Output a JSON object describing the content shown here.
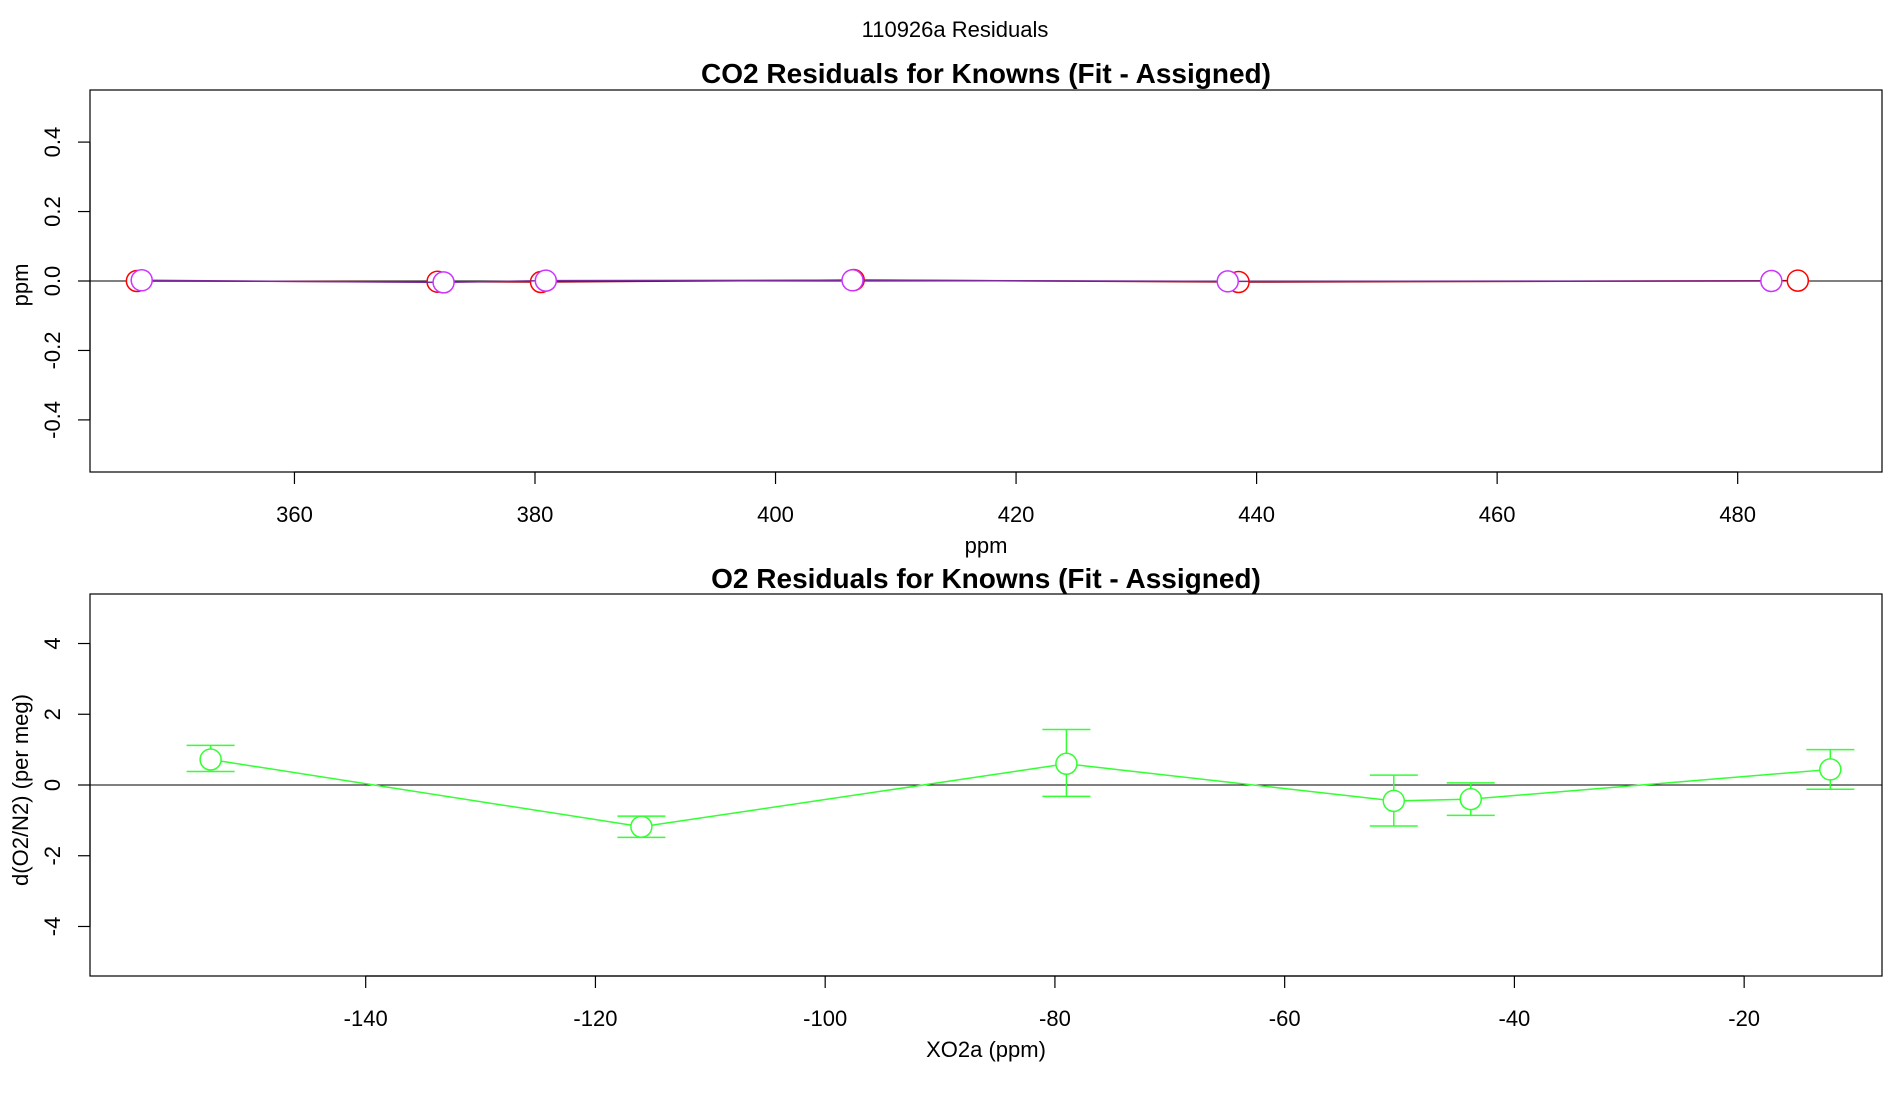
{
  "figure": {
    "suptitle": "110926a  Residuals"
  },
  "chart_data": [
    {
      "type": "line",
      "title": "CO2 Residuals for Knowns (Fit - Assigned)",
      "xlabel": "ppm",
      "ylabel": "ppm",
      "xlim": [
        343,
        492
      ],
      "ylim": [
        -0.55,
        0.55
      ],
      "xticks": [
        360,
        380,
        400,
        420,
        440,
        460,
        480
      ],
      "yticks": [
        -0.4,
        -0.2,
        0.0,
        0.2,
        0.4
      ],
      "ytick_labels": [
        "-0.4",
        "-0.2",
        "0.0",
        "0.2",
        "0.4"
      ],
      "zero_line": true,
      "series": [
        {
          "name": "series-red",
          "color": "#ff0000",
          "line_color": "#a00000",
          "x": [
            346.9,
            371.9,
            380.5,
            406.5,
            438.5,
            485.0
          ],
          "y": [
            0.0,
            -0.002,
            -0.003,
            0.003,
            -0.003,
            0.001
          ]
        },
        {
          "name": "series-magenta",
          "color": "#cc33ff",
          "line_color": "#7a2a9a",
          "x": [
            347.3,
            372.4,
            380.9,
            406.4,
            437.6,
            482.8
          ],
          "y": [
            0.002,
            -0.004,
            0.001,
            0.002,
            -0.001,
            0.0
          ]
        }
      ]
    },
    {
      "type": "line",
      "title": "O2 Residuals for Knowns (Fit - Assigned)",
      "xlabel": "XO2a (ppm)",
      "ylabel": "d(O2/N2) (per meg)",
      "xlim": [
        -164,
        -8
      ],
      "ylim": [
        -5.4,
        5.4
      ],
      "xticks": [
        -140,
        -120,
        -100,
        -80,
        -60,
        -40,
        -20
      ],
      "yticks": [
        -4,
        -2,
        0,
        2,
        4
      ],
      "ytick_labels": [
        "-4",
        "-2",
        "0",
        "2",
        "4"
      ],
      "zero_line": true,
      "series": [
        {
          "name": "o2-residuals",
          "color": "#33ff33",
          "x": [
            -153.5,
            -116.0,
            -79.0,
            -50.5,
            -43.8,
            -12.5
          ],
          "y": [
            0.72,
            -1.18,
            0.6,
            -0.45,
            -0.4,
            0.44
          ],
          "err_low": [
            0.38,
            -1.48,
            -0.32,
            -1.16,
            -0.86,
            -0.12
          ],
          "err_high": [
            1.12,
            -0.88,
            1.57,
            0.28,
            0.06,
            1.0
          ]
        }
      ]
    }
  ]
}
